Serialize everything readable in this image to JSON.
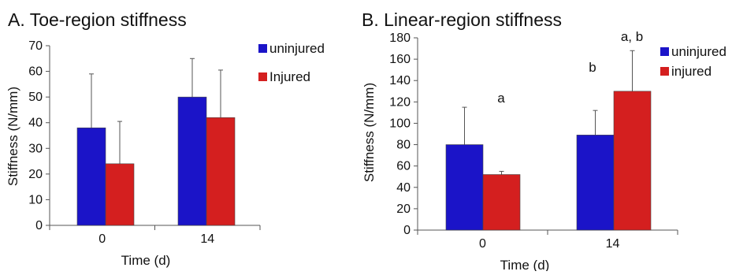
{
  "colors": {
    "uninjured": "#1b14c8",
    "injured": "#d41f1f",
    "axis": "#555555",
    "errbar": "#555555"
  },
  "chart_data": [
    {
      "type": "bar",
      "title": "A. Toe-region stiffness",
      "xlabel": "Time (d)",
      "ylabel": "Stiffness (N/mm)",
      "categories": [
        "0",
        "14"
      ],
      "ylim": [
        0,
        70
      ],
      "yticks": [
        0,
        10,
        20,
        30,
        40,
        50,
        60,
        70
      ],
      "grid": false,
      "legend_position": "top-right",
      "series": [
        {
          "name": "uninjured",
          "color": "#1b14c8",
          "values": [
            38,
            50
          ],
          "errors": [
            21,
            15
          ]
        },
        {
          "name": "Injured",
          "color": "#d41f1f",
          "values": [
            24,
            42
          ],
          "errors": [
            16.5,
            18.5
          ]
        }
      ],
      "annotations": []
    },
    {
      "type": "bar",
      "title": "B. Linear-region stiffness",
      "xlabel": "Time (d)",
      "ylabel": "Stiffness (N/mm)",
      "categories": [
        "0",
        "14"
      ],
      "ylim": [
        0,
        180
      ],
      "yticks": [
        0,
        20,
        40,
        60,
        80,
        100,
        120,
        140,
        160,
        180
      ],
      "grid": false,
      "legend_position": "top-right",
      "series": [
        {
          "name": "uninjured",
          "color": "#1b14c8",
          "values": [
            80,
            89
          ],
          "errors": [
            35,
            23
          ]
        },
        {
          "name": "injured",
          "color": "#d41f1f",
          "values": [
            52,
            130
          ],
          "errors": [
            3,
            38
          ]
        }
      ],
      "annotations": [
        {
          "text": "a",
          "category": "0"
        },
        {
          "text": "b",
          "category": "14",
          "series": "uninjured"
        },
        {
          "text": "a, b",
          "category": "14",
          "series": "injured"
        }
      ]
    }
  ]
}
